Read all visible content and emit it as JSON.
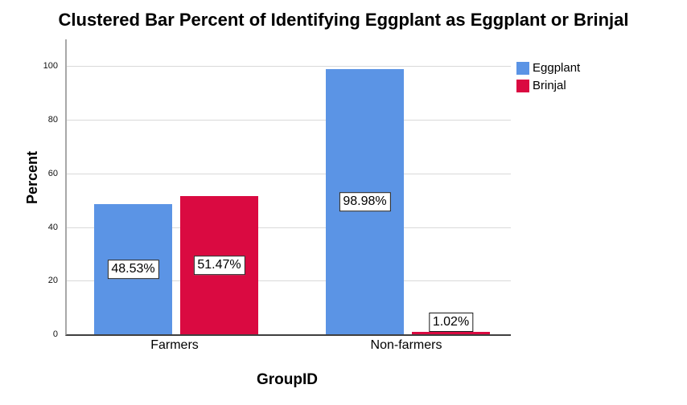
{
  "title": "Clustered Bar Percent of Identifying Eggplant as Eggplant or Brinjal",
  "chart_data": {
    "type": "bar",
    "title": "Clustered Bar Percent of Identifying Eggplant as Eggplant or Brinjal",
    "categories": [
      "Farmers",
      "Non-farmers"
    ],
    "series": [
      {
        "name": "Eggplant",
        "color": "#5B94E5",
        "values": [
          48.53,
          98.98
        ],
        "data_labels": [
          "48.53%",
          "98.98%"
        ]
      },
      {
        "name": "Brinjal",
        "color": "#DA0A41",
        "values": [
          51.47,
          1.02
        ],
        "data_labels": [
          "51.47%",
          "1.02%"
        ]
      }
    ],
    "xlabel": "GroupID",
    "ylabel": "Percent",
    "ylim": [
      0,
      110
    ],
    "yticks": [
      "0",
      "20",
      "40",
      "60",
      "80",
      "100"
    ],
    "grid": true,
    "legend_position": "top-right",
    "plot_background": "#FFFFFF",
    "gridline_color": "#D9D9D9",
    "label_box_background": "#FFFFFF",
    "label_box_border": "#1A1A1A"
  }
}
